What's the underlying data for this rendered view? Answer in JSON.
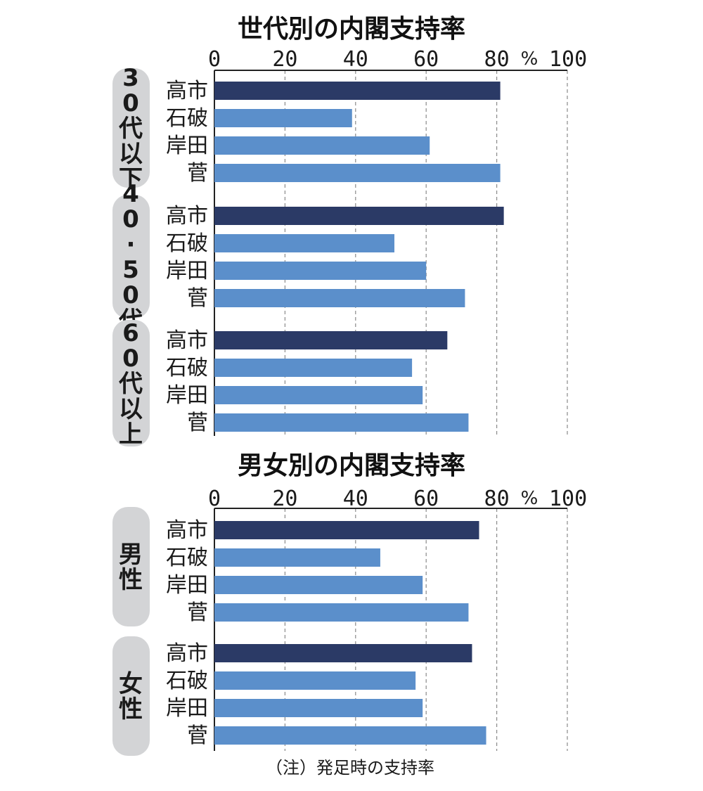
{
  "colors": {
    "highlight": "#2b3a66",
    "bar": "#5b8fcb",
    "group_badge": "#d3d4d6",
    "grid": "#8a8a8a"
  },
  "chart_data": [
    {
      "type": "bar",
      "orientation": "horizontal",
      "title": "世代別の内閣支持率",
      "unit_label": "%",
      "xlim": [
        0,
        100
      ],
      "ticks": [
        0,
        20,
        40,
        60,
        80,
        100
      ],
      "categories": [
        "高市",
        "石破",
        "岸田",
        "菅"
      ],
      "highlight_category": "高市",
      "groups": [
        {
          "label": "30代以下",
          "values": [
            81,
            39,
            61,
            81
          ]
        },
        {
          "label": "40·50代",
          "values": [
            82,
            51,
            60,
            71
          ]
        },
        {
          "label": "60代以上",
          "values": [
            66,
            56,
            59,
            72
          ]
        }
      ]
    },
    {
      "type": "bar",
      "orientation": "horizontal",
      "title": "男女別の内閣支持率",
      "unit_label": "%",
      "xlim": [
        0,
        100
      ],
      "ticks": [
        0,
        20,
        40,
        60,
        80,
        100
      ],
      "categories": [
        "高市",
        "石破",
        "岸田",
        "菅"
      ],
      "highlight_category": "高市",
      "groups": [
        {
          "label": "男性",
          "values": [
            75,
            47,
            59,
            72
          ]
        },
        {
          "label": "女性",
          "values": [
            73,
            57,
            59,
            77
          ]
        }
      ]
    }
  ],
  "note": "（注）発足時の支持率"
}
